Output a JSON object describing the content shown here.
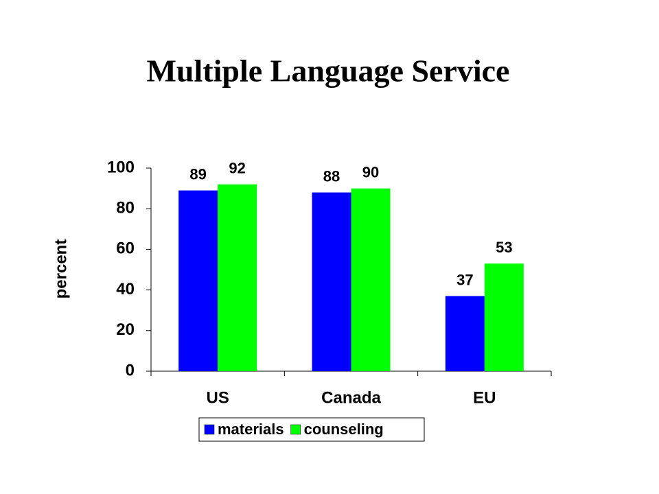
{
  "chart_data": {
    "type": "bar",
    "title": "Multiple Language Service",
    "y_label": "percent",
    "categories": [
      "US",
      "Canada",
      "EU"
    ],
    "series": [
      {
        "name": "materials",
        "color": "#0000ff",
        "values": [
          89,
          88,
          37
        ]
      },
      {
        "name": "counseling",
        "color": "#00ff00",
        "values": [
          92,
          90,
          53
        ]
      }
    ],
    "ylim": [
      0,
      100
    ],
    "yticks": [
      0,
      20,
      40,
      60,
      80,
      100
    ],
    "grid": false,
    "legend": "bottom"
  }
}
